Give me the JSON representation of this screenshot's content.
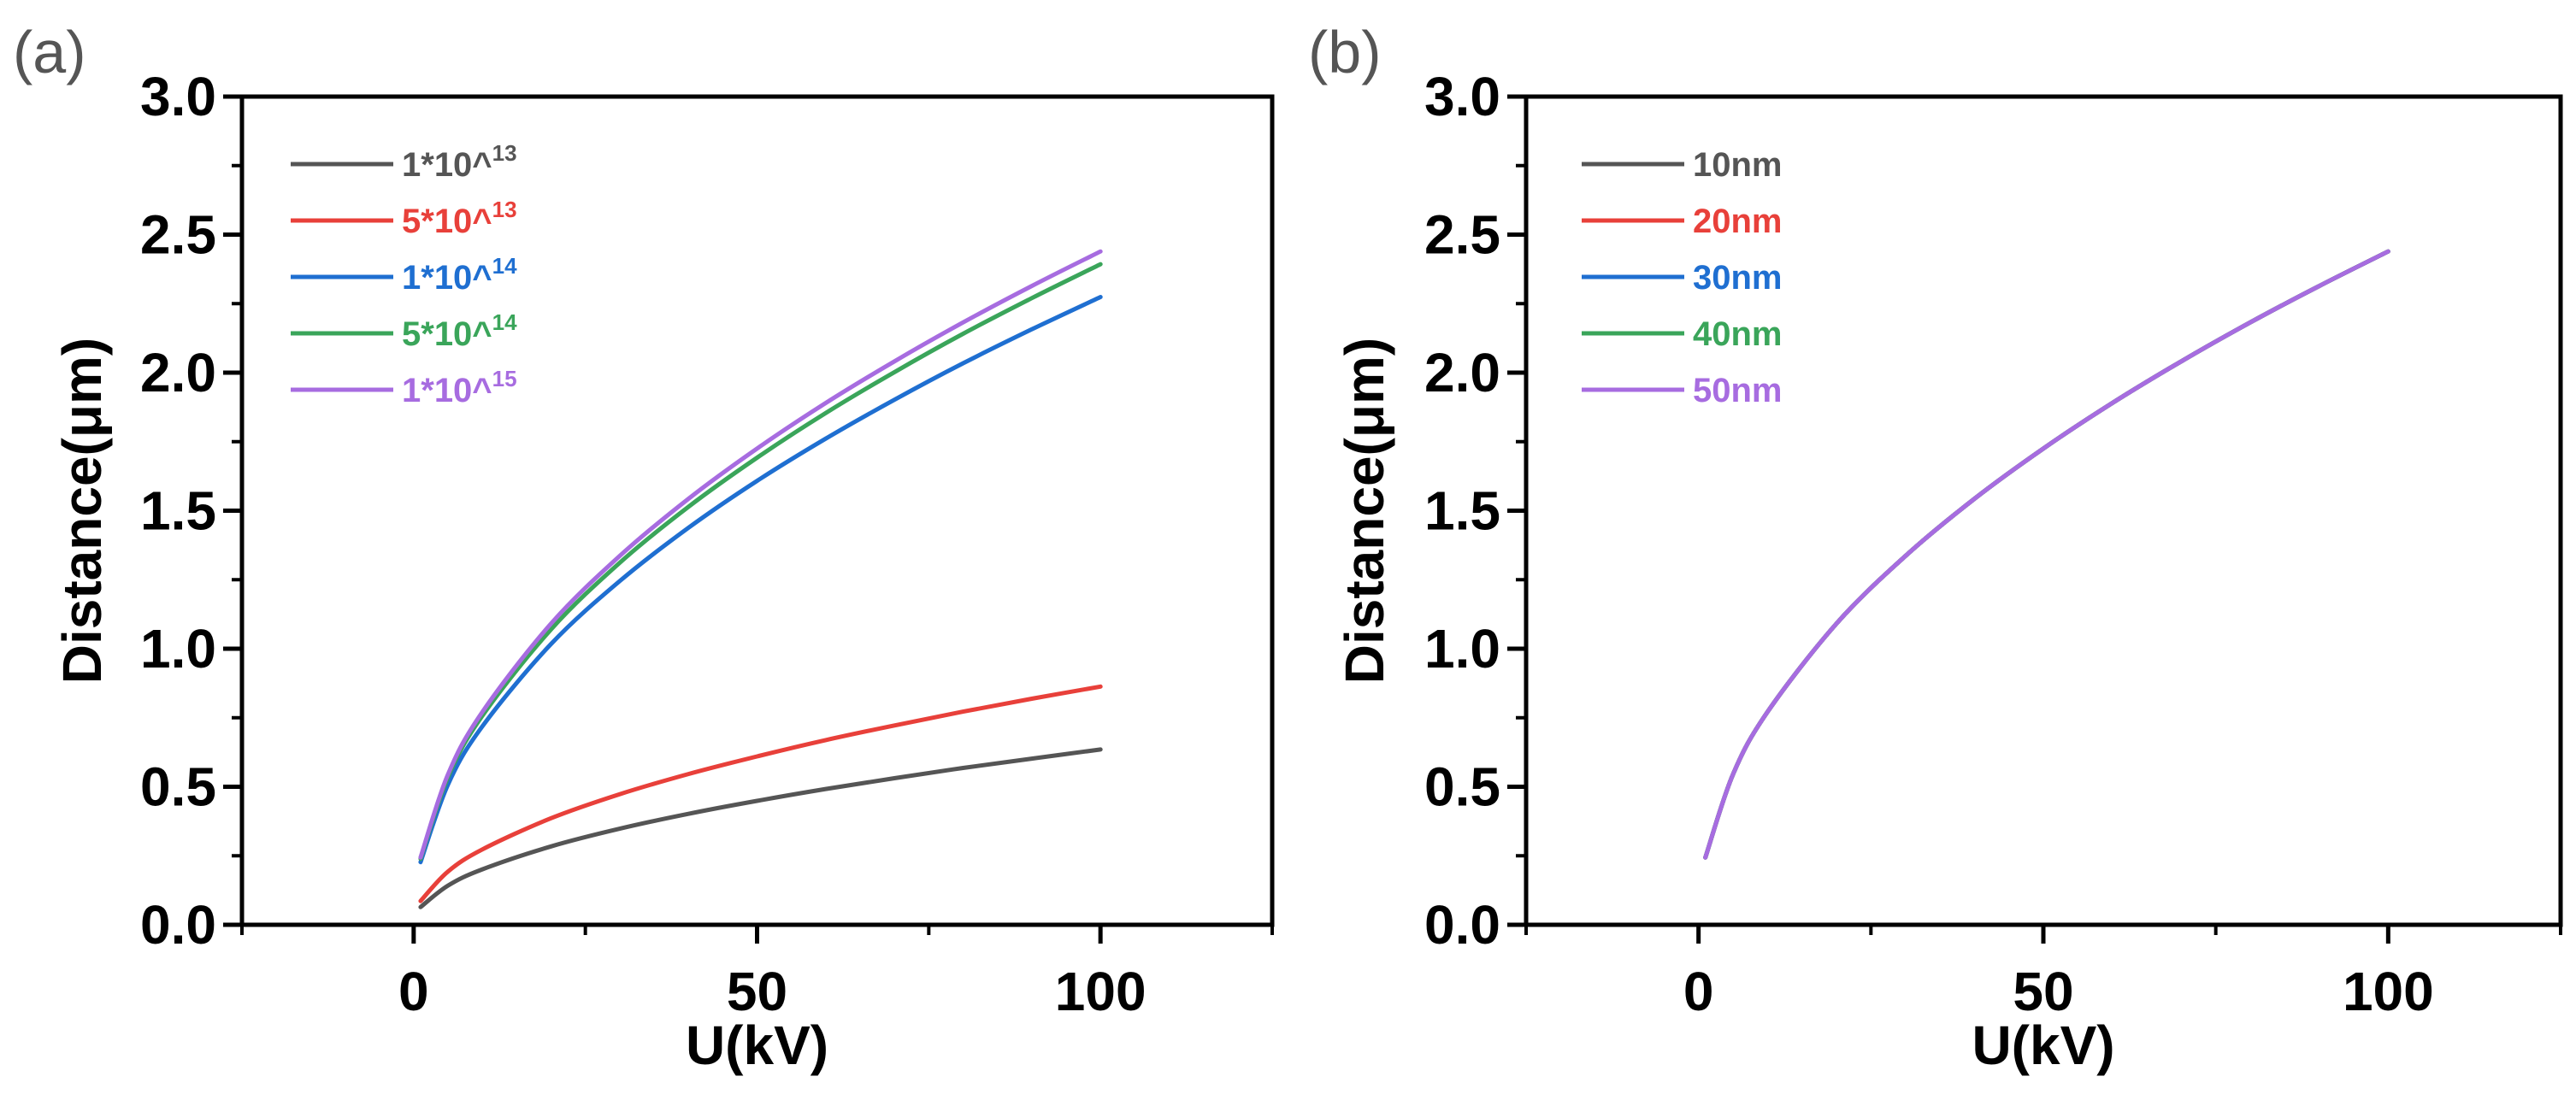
{
  "chart_data": [
    {
      "type": "line",
      "panel_label": "(a)",
      "xlabel": "U(kV)",
      "ylabel": "Distance(μm)",
      "xlim": [
        -25,
        125
      ],
      "ylim": [
        0,
        3.0
      ],
      "xticks": [
        0,
        50,
        100
      ],
      "xtick_labels": [
        "0",
        "50",
        "100"
      ],
      "yticks": [
        0.0,
        0.5,
        1.0,
        1.5,
        2.0,
        2.5,
        3.0
      ],
      "ytick_labels": [
        "0.0",
        "0.5",
        "1.0",
        "1.5",
        "2.0",
        "2.5",
        "3.0"
      ],
      "legend_position": "top-left",
      "x": [
        1,
        5,
        10,
        20,
        30,
        40,
        50,
        60,
        70,
        80,
        90,
        100
      ],
      "series": [
        {
          "name": "1*10^13",
          "label_base": "1*10^",
          "label_sup": "13",
          "color": "#555555",
          "values": [
            0.064,
            0.142,
            0.201,
            0.284,
            0.348,
            0.402,
            0.449,
            0.492,
            0.531,
            0.568,
            0.602,
            0.635
          ]
        },
        {
          "name": "5*10^13",
          "label_base": "5*10^",
          "label_sup": "13",
          "color": "#e8403a",
          "values": [
            0.086,
            0.193,
            0.273,
            0.386,
            0.473,
            0.546,
            0.61,
            0.669,
            0.722,
            0.772,
            0.819,
            0.863
          ]
        },
        {
          "name": "1*10^14",
          "label_base": "1*10^",
          "label_sup": "14",
          "color": "#1f6fd1",
          "values": [
            0.227,
            0.508,
            0.719,
            1.017,
            1.245,
            1.438,
            1.608,
            1.761,
            1.902,
            2.034,
            2.157,
            2.274
          ]
        },
        {
          "name": "5*10^14",
          "label_base": "5*10^",
          "label_sup": "14",
          "color": "#3aa55a",
          "values": [
            0.239,
            0.535,
            0.757,
            1.07,
            1.311,
            1.514,
            1.692,
            1.854,
            2.002,
            2.141,
            2.27,
            2.393
          ]
        },
        {
          "name": "1*10^15",
          "label_base": "1*10^",
          "label_sup": "15",
          "color": "#a76ce0",
          "values": [
            0.244,
            0.545,
            0.771,
            1.091,
            1.336,
            1.543,
            1.725,
            1.89,
            2.041,
            2.182,
            2.314,
            2.439
          ]
        }
      ]
    },
    {
      "type": "line",
      "panel_label": "(b)",
      "xlabel": "U(kV)",
      "ylabel": "Distance(μm)",
      "xlim": [
        -25,
        125
      ],
      "ylim": [
        0,
        3.0
      ],
      "xticks": [
        0,
        50,
        100
      ],
      "xtick_labels": [
        "0",
        "50",
        "100"
      ],
      "yticks": [
        0.0,
        0.5,
        1.0,
        1.5,
        2.0,
        2.5,
        3.0
      ],
      "ytick_labels": [
        "0.0",
        "0.5",
        "1.0",
        "1.5",
        "2.0",
        "2.5",
        "3.0"
      ],
      "legend_position": "top-left",
      "x": [
        1,
        5,
        10,
        20,
        30,
        40,
        50,
        60,
        70,
        80,
        90,
        100
      ],
      "series": [
        {
          "name": "10nm",
          "label_base": "10nm",
          "label_sup": "",
          "color": "#555555",
          "values": [
            0.244,
            0.545,
            0.771,
            1.091,
            1.336,
            1.543,
            1.725,
            1.89,
            2.041,
            2.182,
            2.314,
            2.439
          ]
        },
        {
          "name": "20nm",
          "label_base": "20nm",
          "label_sup": "",
          "color": "#e8403a",
          "values": [
            0.244,
            0.545,
            0.771,
            1.091,
            1.336,
            1.543,
            1.725,
            1.89,
            2.041,
            2.182,
            2.314,
            2.439
          ]
        },
        {
          "name": "30nm",
          "label_base": "30nm",
          "label_sup": "",
          "color": "#1f6fd1",
          "values": [
            0.244,
            0.545,
            0.771,
            1.091,
            1.336,
            1.543,
            1.725,
            1.89,
            2.041,
            2.182,
            2.314,
            2.439
          ]
        },
        {
          "name": "40nm",
          "label_base": "40nm",
          "label_sup": "",
          "color": "#3aa55a",
          "values": [
            0.244,
            0.545,
            0.771,
            1.091,
            1.336,
            1.543,
            1.725,
            1.89,
            2.041,
            2.182,
            2.314,
            2.439
          ]
        },
        {
          "name": "50nm",
          "label_base": "50nm",
          "label_sup": "",
          "color": "#a76ce0",
          "values": [
            0.244,
            0.545,
            0.771,
            1.091,
            1.336,
            1.543,
            1.725,
            1.89,
            2.041,
            2.182,
            2.314,
            2.439
          ]
        }
      ]
    }
  ]
}
